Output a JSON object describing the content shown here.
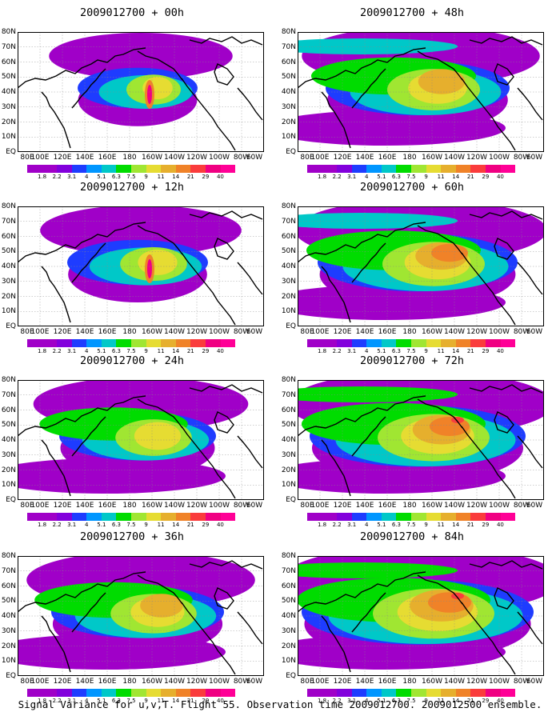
{
  "caption": "Signal Variance for u,v,T. Flight 55. Observation time 2009012700. 2009012500 ensemble.",
  "lat_labels": [
    "80N",
    "70N",
    "60N",
    "50N",
    "40N",
    "30N",
    "20N",
    "10N",
    "EQ"
  ],
  "lon_labels": [
    "80E",
    "100E",
    "120E",
    "140E",
    "160E",
    "180",
    "160W",
    "140W",
    "120W",
    "100W",
    "80W",
    "60W"
  ],
  "colorbar": {
    "labels": [
      "1.8",
      "2.2",
      "3.1",
      "4",
      "5.1",
      "6.3",
      "7.5",
      "9",
      "11",
      "14",
      "21",
      "29",
      "40"
    ],
    "colors": [
      "#a000c8",
      "#8200dc",
      "#1e3cff",
      "#0096ff",
      "#00c8c8",
      "#00dc00",
      "#a0e632",
      "#e6dc32",
      "#e6af2d",
      "#f08228",
      "#fa3c3c",
      "#f00082",
      "#ff0096"
    ]
  },
  "panels": [
    {
      "title": "2009012700 + 00h",
      "level": 0.15
    },
    {
      "title": "2009012700 + 48h",
      "level": 0.55
    },
    {
      "title": "2009012700 + 12h",
      "level": 0.28
    },
    {
      "title": "2009012700 + 60h",
      "level": 0.65
    },
    {
      "title": "2009012700 + 24h",
      "level": 0.38
    },
    {
      "title": "2009012700 + 72h",
      "level": 0.75
    },
    {
      "title": "2009012700 + 36h",
      "level": 0.48
    },
    {
      "title": "2009012700 + 84h",
      "level": 0.85
    }
  ]
}
